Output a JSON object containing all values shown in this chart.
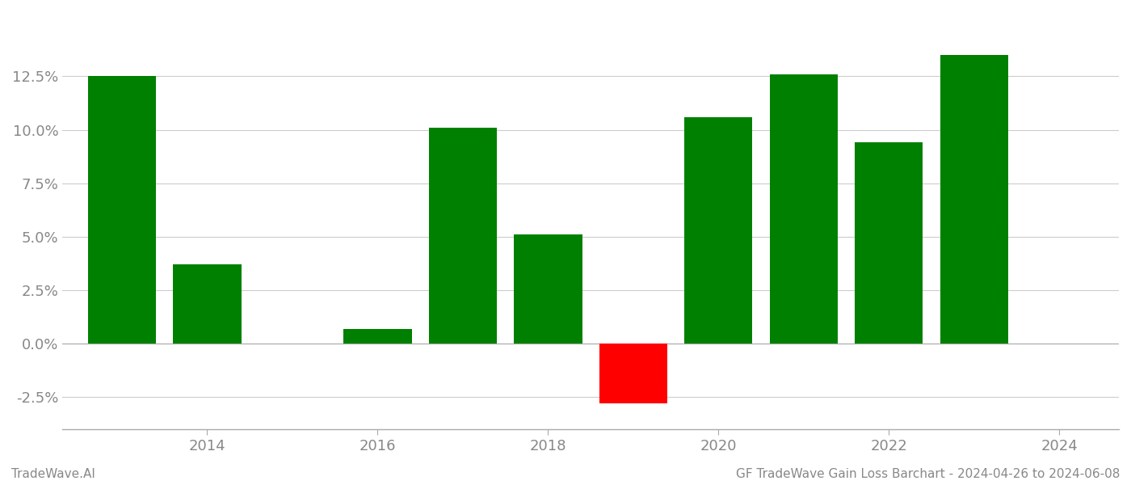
{
  "years": [
    2013,
    2014,
    2016,
    2017,
    2018,
    2019,
    2020,
    2021,
    2022,
    2023
  ],
  "values": [
    0.125,
    0.037,
    0.007,
    0.101,
    0.051,
    -0.028,
    0.106,
    0.126,
    0.094,
    0.135
  ],
  "bar_colors": [
    "#008000",
    "#008000",
    "#008000",
    "#008000",
    "#008000",
    "#ff0000",
    "#008000",
    "#008000",
    "#008000",
    "#008000"
  ],
  "bar_width": 0.8,
  "ylim": [
    -0.04,
    0.155
  ],
  "xlim": [
    2012.3,
    2024.7
  ],
  "xticks": [
    2014,
    2016,
    2018,
    2020,
    2022,
    2024
  ],
  "yticks": [
    -0.025,
    0.0,
    0.025,
    0.05,
    0.075,
    0.1,
    0.125
  ],
  "footer_left": "TradeWave.AI",
  "footer_right": "GF TradeWave Gain Loss Barchart - 2024-04-26 to 2024-06-08",
  "background_color": "#ffffff",
  "grid_color": "#cccccc",
  "axis_color": "#aaaaaa",
  "tick_label_color": "#888888",
  "footer_color": "#888888",
  "tick_fontsize": 13,
  "footer_fontsize": 11
}
